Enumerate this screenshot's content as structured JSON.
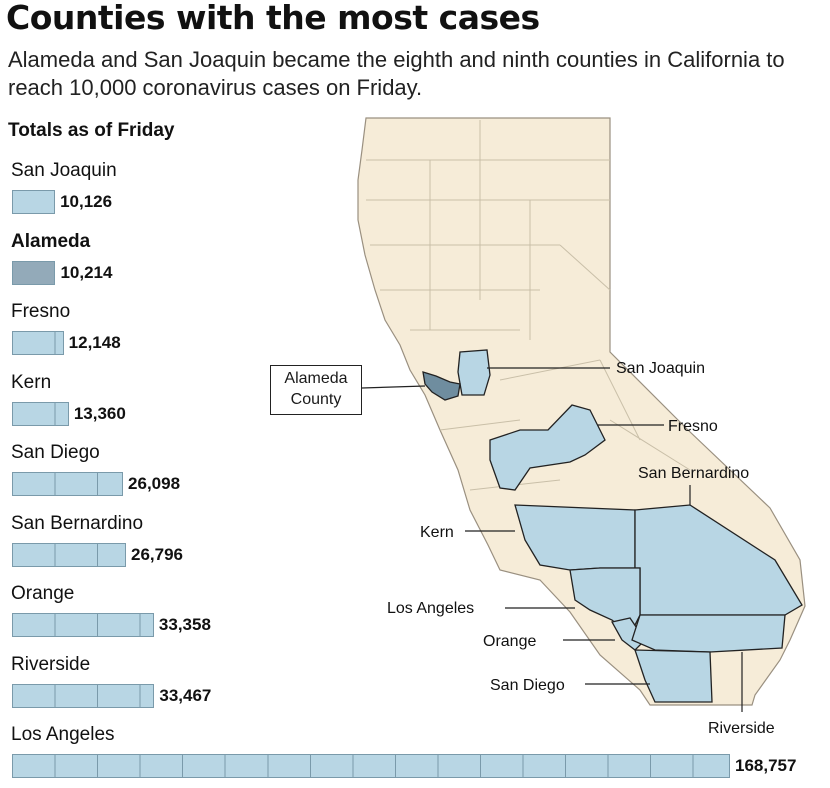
{
  "title": "Counties with the most cases",
  "subtitle": "Alameda and San Joaquin became the eighth and ninth counties in California to reach 10,000 coronavirus cases on Friday.",
  "totals_label": "Totals as of Friday",
  "colors": {
    "bar_fill": "#b8d6e4",
    "bar_highlight": "#93aab9",
    "map_land": "#f6ecd8",
    "county_fill": "#b8d6e4",
    "county_highlight": "#6f8d9f"
  },
  "chart_data": {
    "type": "bar",
    "orientation": "horizontal",
    "title": "Counties with the most cases",
    "subtitle": "Totals as of Friday",
    "grid": true,
    "highlighted": "Alameda",
    "categories": [
      "San Joaquin",
      "Alameda",
      "Fresno",
      "Kern",
      "San Diego",
      "San Bernardino",
      "Orange",
      "Riverside",
      "Los Angeles"
    ],
    "values": [
      10126,
      10214,
      12148,
      13360,
      26098,
      26796,
      33358,
      33467,
      168757
    ],
    "value_labels": [
      "10,126",
      "10,214",
      "12,148",
      "13,360",
      "26,098",
      "26,796",
      "33,358",
      "33,467",
      "168,757"
    ],
    "tick_interval": 10000
  },
  "map": {
    "callout_line1": "Alameda",
    "callout_line2": "County",
    "labels": {
      "san_joaquin": "San Joaquin",
      "fresno": "Fresno",
      "san_bernardino": "San Bernardino",
      "kern": "Kern",
      "los_angeles": "Los Angeles",
      "orange": "Orange",
      "san_diego": "San Diego",
      "riverside": "Riverside"
    }
  }
}
